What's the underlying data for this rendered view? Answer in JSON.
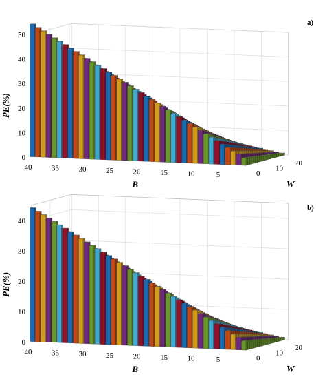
{
  "chart_data": [
    {
      "type": "bar3d",
      "panel_label": "a)",
      "zlabel": "PE(%)",
      "xlabel": "B",
      "ylabel": "W",
      "z_ticks": [
        0,
        10,
        20,
        30,
        40,
        50
      ],
      "zlim": [
        0,
        50
      ],
      "b_ticks": [
        40,
        35,
        30,
        25,
        20,
        15,
        10,
        5
      ],
      "w_ticks": [
        0,
        10,
        20
      ],
      "b_range": [
        1,
        40
      ],
      "w_range": [
        1,
        20
      ],
      "pe_max": 54,
      "pe_at_b_min": 3,
      "pe_at_w_max_ratio": 0.3,
      "grid": true
    },
    {
      "type": "bar3d",
      "panel_label": "b)",
      "zlabel": "PE(%)",
      "xlabel": "B",
      "ylabel": "W",
      "z_ticks": [
        0,
        10,
        20,
        30,
        40
      ],
      "zlim": [
        0,
        45
      ],
      "b_ticks": [
        40,
        35,
        30,
        25,
        20,
        15,
        10,
        5
      ],
      "w_ticks": [
        0,
        10,
        20
      ],
      "b_range": [
        1,
        40
      ],
      "w_range": [
        1,
        20
      ],
      "pe_max": 44,
      "pe_at_b_min": 3,
      "pe_at_w_max_ratio": 0.3,
      "grid": true
    }
  ],
  "colors": [
    "#1f77c8",
    "#d95319",
    "#edb120",
    "#7e2f8e",
    "#77ac30",
    "#4dbeee",
    "#a2142f"
  ]
}
